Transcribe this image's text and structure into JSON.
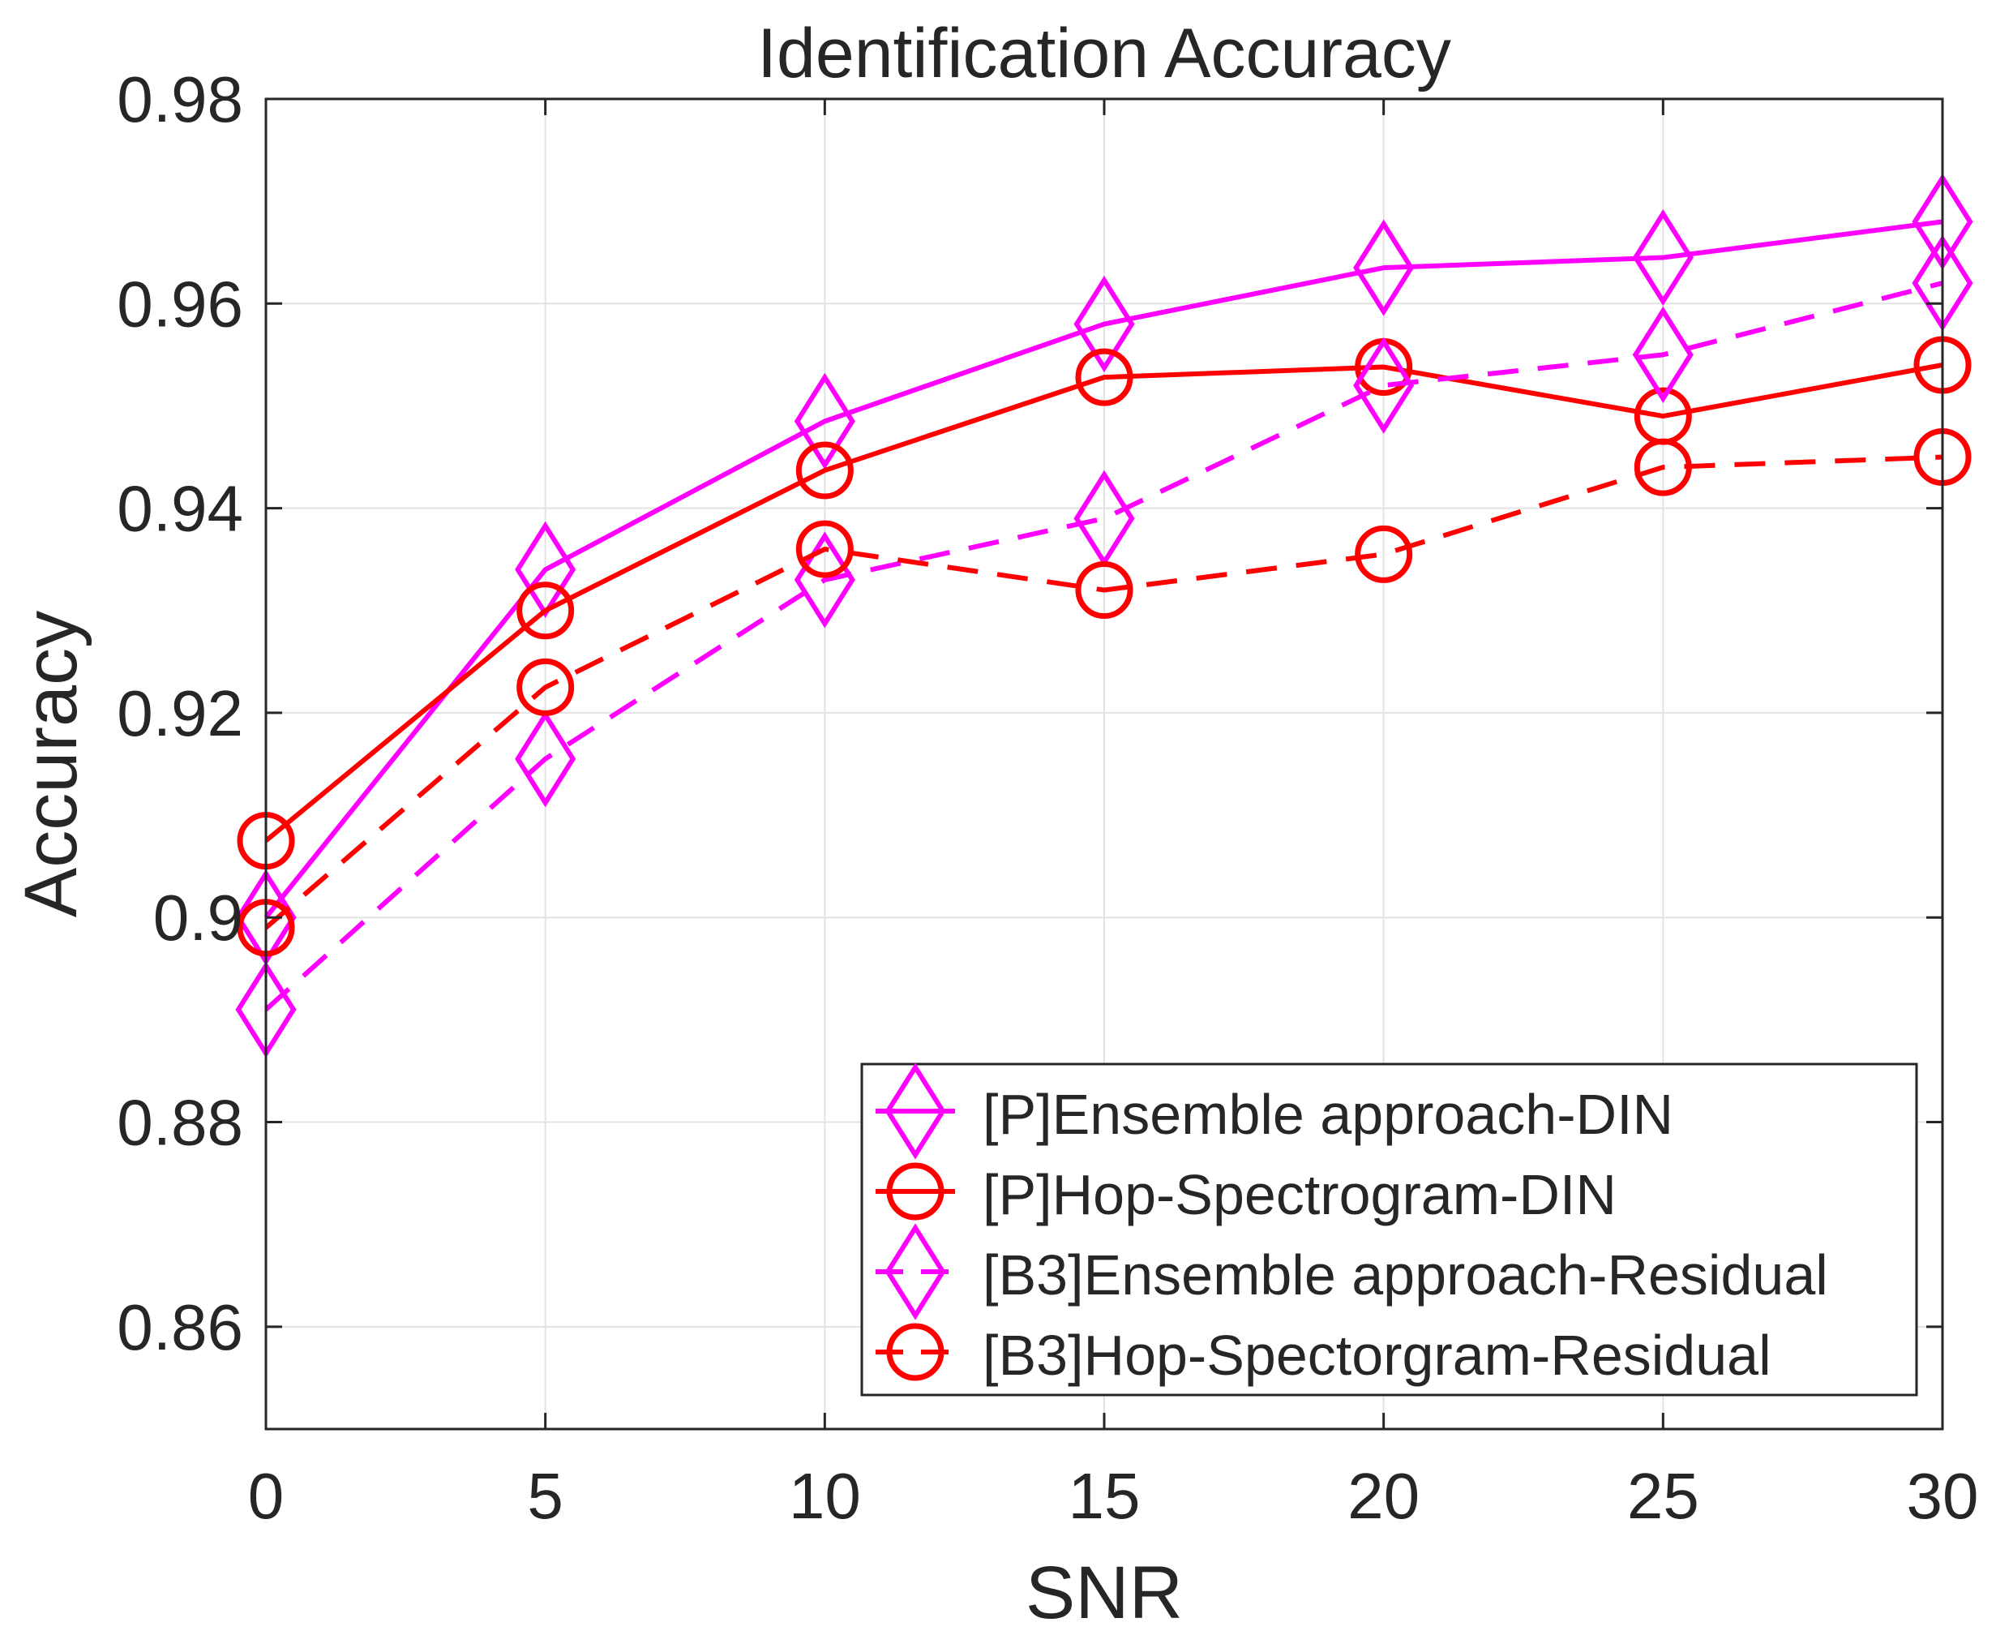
{
  "chart_data": {
    "type": "line",
    "title": "Identification Accuracy",
    "xlabel": "SNR",
    "ylabel": "Accuracy",
    "xlim": [
      0,
      30
    ],
    "ylim": [
      0.85,
      0.98
    ],
    "xticks": [
      0,
      5,
      10,
      15,
      20,
      25,
      30
    ],
    "xtick_labels": [
      "0",
      "5",
      "10",
      "15",
      "20",
      "25",
      "30"
    ],
    "yticks": [
      0.86,
      0.88,
      0.9,
      0.92,
      0.94,
      0.96,
      0.98
    ],
    "ytick_labels": [
      "0.86",
      "0.88",
      "0.9",
      "0.92",
      "0.94",
      "0.96",
      "0.98"
    ],
    "grid": true,
    "legend_position": "bottom-right",
    "x": [
      0,
      5,
      10,
      15,
      20,
      25,
      30
    ],
    "series": [
      {
        "name": "[P]Ensemble approach-DIN",
        "color": "#ff00ff",
        "marker": "diamond",
        "dash": "solid",
        "values": [
          0.9,
          0.934,
          0.9485,
          0.958,
          0.9635,
          0.9645,
          0.968
        ]
      },
      {
        "name": "[P]Hop-Spectrogram-DIN",
        "color": "#ff0000",
        "marker": "circle",
        "dash": "solid",
        "values": [
          0.9075,
          0.93,
          0.9437,
          0.9528,
          0.9538,
          0.949,
          0.954
        ]
      },
      {
        "name": "[B3]Ensemble approach-Residual",
        "color": "#ff00ff",
        "marker": "diamond",
        "dash": "dashed",
        "values": [
          0.891,
          0.9155,
          0.933,
          0.939,
          0.952,
          0.955,
          0.962
        ]
      },
      {
        "name": "[B3]Hop-Spectorgram-Residual",
        "color": "#ff0000",
        "marker": "circle",
        "dash": "dashed",
        "values": [
          0.899,
          0.9225,
          0.936,
          0.932,
          0.9355,
          0.944,
          0.945
        ]
      }
    ]
  }
}
